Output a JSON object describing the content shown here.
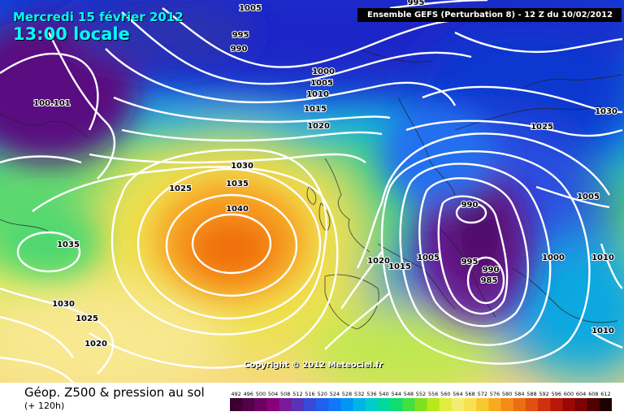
{
  "header": {
    "date": "Mercredi 15 février 2012",
    "time": "13:00 locale",
    "run_info": "Ensemble GEFS (Perturbation 8)  -  12 Z du 10/02/2012"
  },
  "map": {
    "copyright": "Copyright © 2012 Meteociel.fr",
    "pressure_labels": [
      {
        "text": "1005"
      },
      {
        "text": "995"
      },
      {
        "text": "990"
      },
      {
        "text": "995"
      },
      {
        "text": "100.101"
      },
      {
        "text": "1000"
      },
      {
        "text": "1005"
      },
      {
        "text": "1010"
      },
      {
        "text": "1015"
      },
      {
        "text": "1020"
      },
      {
        "text": "1030"
      },
      {
        "text": "1035"
      },
      {
        "text": "1025"
      },
      {
        "text": "1040"
      },
      {
        "text": "1035"
      },
      {
        "text": "1030"
      },
      {
        "text": "1025"
      },
      {
        "text": "1020"
      },
      {
        "text": "1020"
      },
      {
        "text": "1015"
      },
      {
        "text": "1005"
      },
      {
        "text": "995"
      },
      {
        "text": "990"
      },
      {
        "text": "985"
      },
      {
        "text": "990"
      },
      {
        "text": "1000"
      },
      {
        "text": "1025"
      },
      {
        "text": "1030"
      },
      {
        "text": "1005"
      },
      {
        "text": "1010"
      },
      {
        "text": "1010"
      }
    ]
  },
  "legend": {
    "title": "Géop. Z500 & pression au sol",
    "subtitle": "(+ 120h)",
    "scale_values": [
      "492",
      "496",
      "500",
      "504",
      "508",
      "512",
      "516",
      "520",
      "524",
      "528",
      "532",
      "536",
      "540",
      "544",
      "548",
      "552",
      "556",
      "560",
      "564",
      "568",
      "572",
      "576",
      "580",
      "584",
      "588",
      "592",
      "596",
      "600",
      "604",
      "608",
      "612"
    ],
    "scale_colors": [
      "#3c0030",
      "#55004c",
      "#6e0064",
      "#87007c",
      "#7a1a9a",
      "#5a32b8",
      "#3a4ad6",
      "#2060ee",
      "#1078f8",
      "#0096f4",
      "#00b4e8",
      "#00cccc",
      "#00d8a0",
      "#10dc70",
      "#40e040",
      "#80e020",
      "#b8e818",
      "#e0ec40",
      "#f4ec70",
      "#f8e050",
      "#f8c830",
      "#f8aa20",
      "#f48c18",
      "#ec6e14",
      "#e05010",
      "#d0300c",
      "#b81808",
      "#9a0806",
      "#7a0404",
      "#500202",
      "#200000"
    ]
  }
}
